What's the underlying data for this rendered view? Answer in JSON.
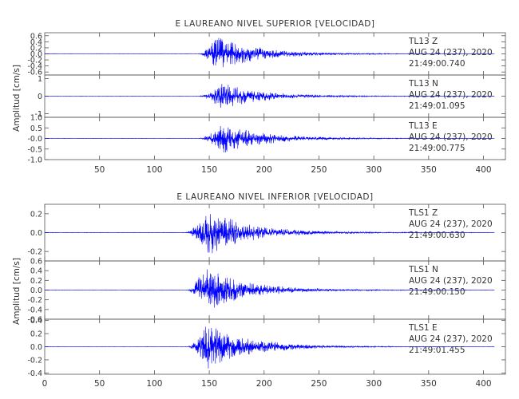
{
  "chart_data": [
    {
      "type": "line",
      "title": "E LAUREANO NIVEL SUPERIOR [VELOCIDAD]",
      "xlabel": "",
      "ylabel": "Amplitud [cm/s]",
      "xlim": [
        0,
        420
      ],
      "x_ticks": [
        50,
        100,
        150,
        200,
        250,
        300,
        350,
        400
      ],
      "x_tick_labels": [
        "50",
        "100",
        "150",
        "200",
        "250",
        "300",
        "350",
        "400"
      ],
      "trace_color": "#0000ff",
      "traces": [
        {
          "station": "TL13",
          "component": "Z",
          "date": "AUG 24 (237), 2020",
          "time": "21:49:00.740",
          "ylim": [
            -0.7,
            0.7
          ],
          "y_ticks": [
            -0.6,
            -0.4,
            -0.2,
            0.0,
            0.2,
            0.4,
            0.6
          ],
          "y_tick_labels": [
            "-0.6",
            "-0.4",
            "-0.2",
            "0.0",
            "0.2",
            "0.4",
            "0.6"
          ],
          "onset": 140,
          "peak_time": 157,
          "peak_amplitude": 0.6,
          "noise": 0.004
        },
        {
          "station": "TL13",
          "component": "N",
          "date": "AUG 24 (237), 2020",
          "time": "21:49:01.095",
          "ylim": [
            -1.2,
            1.2
          ],
          "y_ticks": [
            -1,
            0,
            1
          ],
          "y_tick_labels": [
            "-1",
            "0",
            "1"
          ],
          "onset": 140,
          "peak_time": 160,
          "peak_amplitude": 0.8,
          "noise": 0.008
        },
        {
          "station": "TL13",
          "component": "E",
          "date": "AUG 24 (237), 2020",
          "time": "21:49:00.775",
          "ylim": [
            -1.0,
            1.0
          ],
          "y_ticks": [
            -1.0,
            -0.5,
            -0.0,
            0.5,
            1.0
          ],
          "y_tick_labels": [
            "-1.0",
            "-0.5",
            "-0.0",
            "0.5",
            "1.0"
          ],
          "onset": 140,
          "peak_time": 162,
          "peak_amplitude": 0.75,
          "noise": 0.006
        }
      ]
    },
    {
      "type": "line",
      "title": "E LAUREANO NIVEL INFERIOR [VELOCIDAD]",
      "xlabel": "",
      "ylabel": "Amplitud [cm/s]",
      "xlim": [
        0,
        420
      ],
      "x_ticks": [
        0,
        50,
        100,
        150,
        200,
        250,
        300,
        350,
        400
      ],
      "x_tick_labels": [
        "0",
        "50",
        "100",
        "150",
        "200",
        "250",
        "300",
        "350",
        "400"
      ],
      "trace_color": "#0000ff",
      "traces": [
        {
          "station": "TLS1",
          "component": "Z",
          "date": "AUG 24 (237), 2020",
          "time": "21:49:00.630",
          "ylim": [
            -0.3,
            0.3
          ],
          "y_ticks": [
            -0.2,
            0.0,
            0.2
          ],
          "y_tick_labels": [
            "-0.2",
            "0.0",
            "0.2"
          ],
          "onset": 128,
          "peak_time": 148,
          "peak_amplitude": 0.26,
          "noise": 0.002
        },
        {
          "station": "TLS1",
          "component": "N",
          "date": "AUG 24 (237), 2020",
          "time": "21:49:00.150",
          "ylim": [
            -0.6,
            0.6
          ],
          "y_ticks": [
            -0.6,
            -0.4,
            -0.2,
            0.0,
            0.2,
            0.4,
            0.6
          ],
          "y_tick_labels": [
            "-0.6",
            "-0.4",
            "-0.2",
            "0.0",
            "0.2",
            "0.4",
            "0.6"
          ],
          "onset": 130,
          "peak_time": 145,
          "peak_amplitude": 0.5,
          "noise": 0.003
        },
        {
          "station": "TLS1",
          "component": "E",
          "date": "AUG 24 (237), 2020",
          "time": "21:49:01.455",
          "ylim": [
            -0.42,
            0.42
          ],
          "y_ticks": [
            -0.4,
            -0.2,
            0.0,
            0.2,
            0.4
          ],
          "y_tick_labels": [
            "-0.4",
            "-0.2",
            "0.0",
            "0.2",
            "0.4"
          ],
          "onset": 130,
          "peak_time": 148,
          "peak_amplitude": 0.38,
          "noise": 0.002
        }
      ]
    }
  ]
}
